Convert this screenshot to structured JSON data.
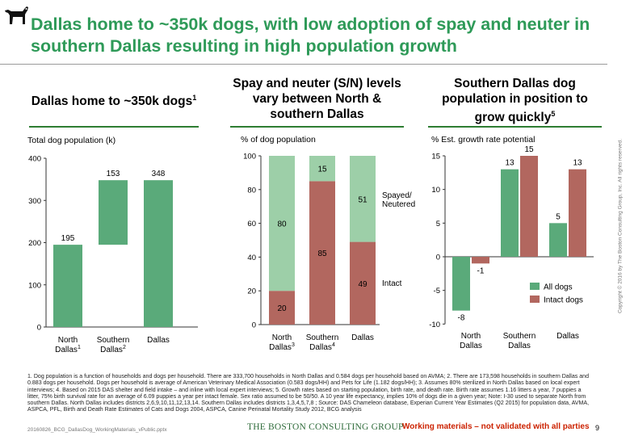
{
  "header": {
    "title": "Dallas home to ~350k dogs, with low adoption of spay and neuter in southern Dallas resulting in high population growth"
  },
  "colors": {
    "green": "#5aaa7a",
    "light_green": "#9dcfa8",
    "rose": "#b2675f",
    "title_green": "#2e9a58",
    "rule_green": "#2e7d32"
  },
  "icons": [
    "dog-icon"
  ],
  "chart_data": [
    {
      "type": "bar",
      "title": "Dallas home to ~350k dogs",
      "title_sup": "1",
      "unit_label": "Total dog population (k)",
      "categories": [
        {
          "name": "North",
          "name2": "Dallas",
          "sup": "1"
        },
        {
          "name": "Southern",
          "name2": "Dallas",
          "sup": "2"
        },
        {
          "name": "Dallas",
          "name2": "",
          "sup": ""
        }
      ],
      "bars": [
        {
          "base": 0,
          "value": 195,
          "label": "195"
        },
        {
          "base": 195,
          "value": 153,
          "label": "153"
        },
        {
          "base": 0,
          "value": 348,
          "label": "348"
        }
      ],
      "ylim": [
        0,
        400
      ],
      "yticks": [
        "0",
        "100",
        "200",
        "300",
        "400"
      ],
      "grid": false
    },
    {
      "type": "bar",
      "stacked": true,
      "title": "Spay and neuter (S/N) levels vary between North & southern Dallas",
      "unit_label": "% of dog population",
      "categories": [
        {
          "name": "North",
          "name2": "Dallas",
          "sup": "3"
        },
        {
          "name": "Southern",
          "name2": "Dallas",
          "sup": "4"
        },
        {
          "name": "Dallas",
          "name2": "",
          "sup": ""
        }
      ],
      "series": [
        {
          "name": "Intact",
          "values": [
            20,
            85,
            49
          ]
        },
        {
          "name": "Spayed/ Neutered",
          "values": [
            80,
            15,
            51
          ]
        }
      ],
      "ylim": [
        0,
        100
      ],
      "yticks": [
        "0",
        "20",
        "40",
        "60",
        "80",
        "100"
      ],
      "legend": {
        "placement": "right",
        "spayed_line1": "Spayed/",
        "spayed_line2": "Neutered",
        "intact": "Intact"
      },
      "grid": false
    },
    {
      "type": "bar",
      "title": "Southern Dallas dog population in position to grow quickly",
      "title_sup": "5",
      "unit_label": "% Est. growth rate potential",
      "categories": [
        {
          "name": "North",
          "name2": "Dallas",
          "sup": ""
        },
        {
          "name": "Southern",
          "name2": "Dallas",
          "sup": ""
        },
        {
          "name": "Dallas",
          "name2": "",
          "sup": ""
        }
      ],
      "series": [
        {
          "name": "All dogs",
          "values": [
            -8,
            13,
            5
          ]
        },
        {
          "name": "Intact dogs",
          "values": [
            -1,
            15,
            13
          ]
        }
      ],
      "ylim": [
        -10,
        15
      ],
      "yticks": [
        "-10",
        "-5",
        "0",
        "5",
        "10",
        "15"
      ],
      "legend": {
        "placement": "bottom-right"
      },
      "grid": false
    }
  ],
  "footnotes": "1. Dog population is a function of households and dogs per household. There are 333,700 households in North Dallas and 0.584 dogs per household based on AVMA; 2. There are 173,598 households in southern Dallas and 0.883 dogs per household. Dogs per household is average of American Veterinary Medical Association (0.583 dogs/HH) and Pets for Life (1.182 dogs/HH); 3. Assumes 80% sterilized in North Dallas based on local expert interviews; 4. Based on 2015 DAS shelter and field intake – and inline with local expert interviews; 5. Growth rates based on starting population, birth rate, and death rate. Birth rate assumes 1.16 litters a year, 7 puppies a litter, 75% birth survival rate for an average of 6.09 puppies a year per intact female. Sex ratio assumed to be 50/50. A 10 year life expectancy, implies 10% of dogs die in a given year; Note: I-30 used to separate North from southern Dallas. North Dallas includes districts 2,6,9,10,11,12,13,14. Southern Dallas includes districts 1,3,4,5,7,8 ; Source: DAS Chameleon database, Experian Current Year Estimates (Q2 2015) for population data, AVMA, ASPCA, PFL, Birth and Death Rate Estimates of Cats and Dogs 2004, ASPCA, Canine Perinatal Mortality Study 2012, BCG analysis",
  "footer": {
    "file": "20160826_BCG_DallasDog_WorkingMaterials_vPublic.pptx",
    "company": "THE BOSTON CONSULTING GROUP",
    "working": "Working materials – not validated with all parties",
    "page": "9",
    "copyright": "Copyright © 2016 by The Boston Consulting Group, Inc. All rights reserved."
  }
}
